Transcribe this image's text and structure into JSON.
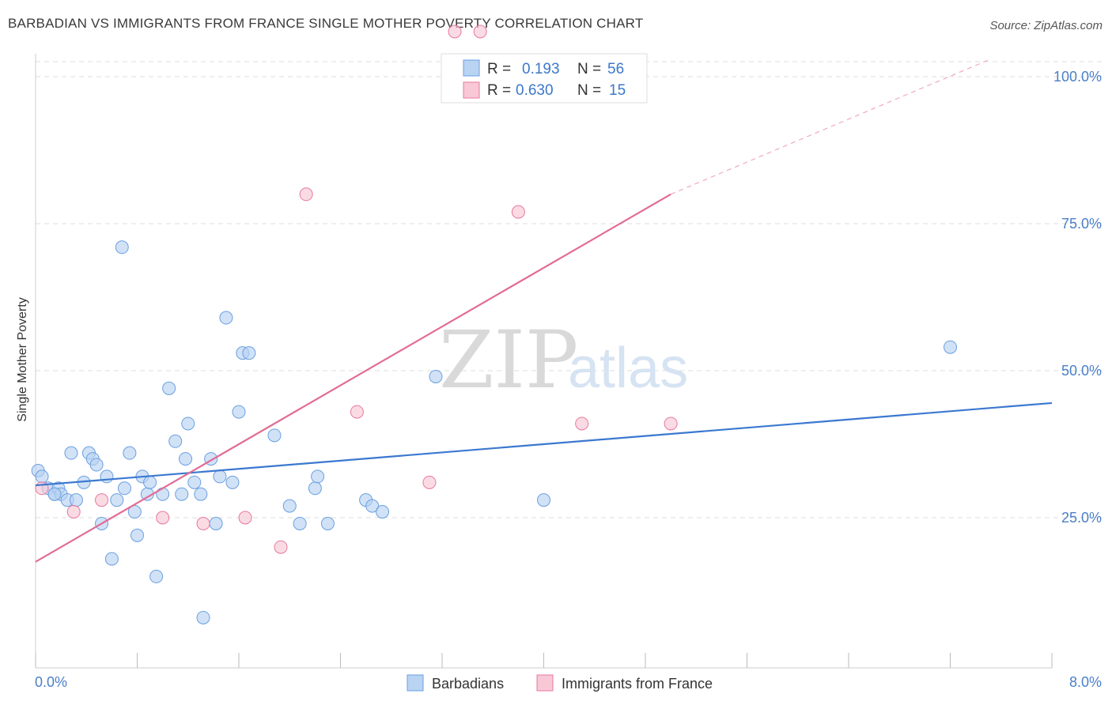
{
  "title": "BARBADIAN VS IMMIGRANTS FROM FRANCE SINGLE MOTHER POVERTY CORRELATION CHART",
  "source": "Source: ZipAtlas.com",
  "watermark": {
    "part1": "ZIP",
    "part2": "atlas"
  },
  "legend": {
    "r_label": "R =",
    "n_label": "N =",
    "rows": [
      {
        "r": "0.193",
        "n": "56",
        "color": "#b9d3f3"
      },
      {
        "r": "0.630",
        "n": "15",
        "color": "#f8c8d6"
      }
    ]
  },
  "chart_data": {
    "type": "scatter",
    "title": "BARBADIAN VS IMMIGRANTS FROM FRANCE SINGLE MOTHER POVERTY CORRELATION CHART",
    "xlabel": "",
    "ylabel": "Single Mother Poverty",
    "xlim": [
      0,
      8
    ],
    "ylim": [
      0,
      100
    ],
    "x_tick_labels": [
      "0.0%",
      "8.0%"
    ],
    "y_tick_labels": [
      "25.0%",
      "50.0%",
      "75.0%",
      "100.0%"
    ],
    "y_tick_values": [
      25,
      50,
      75,
      100
    ],
    "grid": true,
    "legend_position": "top-center",
    "series": [
      {
        "name": "Barbadians",
        "color": "#6a9fe0",
        "fill": "#b9d3f3",
        "points": [
          [
            0.02,
            33
          ],
          [
            0.05,
            32
          ],
          [
            0.1,
            30
          ],
          [
            0.15,
            29
          ],
          [
            0.18,
            30
          ],
          [
            0.2,
            29
          ],
          [
            0.25,
            28
          ],
          [
            0.28,
            36
          ],
          [
            0.32,
            28
          ],
          [
            0.38,
            31
          ],
          [
            0.42,
            36
          ],
          [
            0.45,
            35
          ],
          [
            0.48,
            34
          ],
          [
            0.52,
            24
          ],
          [
            0.56,
            32
          ],
          [
            0.6,
            18
          ],
          [
            0.64,
            28
          ],
          [
            0.68,
            71
          ],
          [
            0.7,
            30
          ],
          [
            0.74,
            36
          ],
          [
            0.78,
            26
          ],
          [
            0.8,
            22
          ],
          [
            0.84,
            32
          ],
          [
            0.88,
            29
          ],
          [
            0.9,
            31
          ],
          [
            0.95,
            15
          ],
          [
            1.0,
            29
          ],
          [
            1.05,
            47
          ],
          [
            1.1,
            38
          ],
          [
            1.15,
            29
          ],
          [
            1.18,
            35
          ],
          [
            1.2,
            41
          ],
          [
            1.25,
            31
          ],
          [
            1.3,
            29
          ],
          [
            1.32,
            8
          ],
          [
            1.38,
            35
          ],
          [
            1.42,
            24
          ],
          [
            1.45,
            32
          ],
          [
            1.5,
            59
          ],
          [
            1.55,
            31
          ],
          [
            1.6,
            43
          ],
          [
            1.63,
            53
          ],
          [
            1.68,
            53
          ],
          [
            1.88,
            39
          ],
          [
            2.0,
            27
          ],
          [
            2.08,
            24
          ],
          [
            2.2,
            30
          ],
          [
            2.22,
            32
          ],
          [
            2.3,
            24
          ],
          [
            2.6,
            28
          ],
          [
            2.65,
            27
          ],
          [
            2.73,
            26
          ],
          [
            3.15,
            49
          ],
          [
            4.0,
            28
          ],
          [
            7.2,
            54
          ],
          [
            0.15,
            29
          ]
        ]
      },
      {
        "name": "Immigrants from France",
        "color": "#e8789f",
        "fill": "#f8c8d6",
        "points": [
          [
            0.05,
            30
          ],
          [
            0.3,
            26
          ],
          [
            0.52,
            28
          ],
          [
            1.0,
            25
          ],
          [
            1.32,
            24
          ],
          [
            1.65,
            25
          ],
          [
            1.93,
            20
          ],
          [
            2.13,
            80
          ],
          [
            2.53,
            43
          ],
          [
            3.1,
            31
          ],
          [
            3.5,
            108
          ],
          [
            3.8,
            77
          ],
          [
            4.3,
            41
          ],
          [
            5.0,
            41
          ],
          [
            3.3,
            108
          ]
        ]
      }
    ],
    "trend_lines": [
      {
        "series": "Barbadians",
        "x": [
          0,
          8
        ],
        "y": [
          30.5,
          44.5
        ]
      },
      {
        "series": "Immigrants from France",
        "x": [
          0,
          5
        ],
        "y": [
          17.5,
          80
        ],
        "dashed_extension_to": [
          7.5,
          111
        ]
      }
    ]
  }
}
